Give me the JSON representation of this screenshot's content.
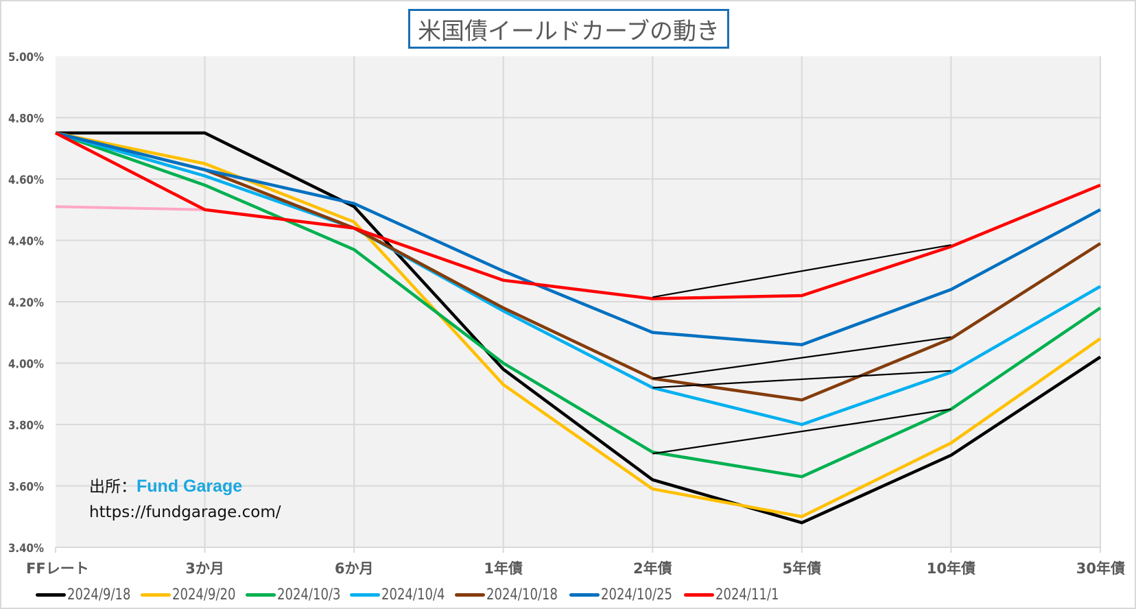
{
  "chart_data": {
    "type": "line",
    "title": "米国債イールドカーブの動き",
    "xlabel": "",
    "ylabel": "",
    "categories": [
      "FFレート",
      "3か月",
      "6か月",
      "1年債",
      "2年債",
      "5年債",
      "10年債",
      "30年債"
    ],
    "ylim": [
      3.4,
      5.0
    ],
    "yticks": [
      3.4,
      3.6,
      3.8,
      4.0,
      4.2,
      4.4,
      4.6,
      4.8,
      5.0
    ],
    "ytick_labels": [
      "3.40%",
      "3.60%",
      "3.80%",
      "4.00%",
      "4.20%",
      "4.40%",
      "4.60%",
      "4.80%",
      "5.00%"
    ],
    "grid": true,
    "legend_position": "bottom",
    "series": [
      {
        "name": "2024/9/18",
        "color": "#000000",
        "values": [
          4.75,
          4.75,
          4.51,
          3.98,
          3.62,
          3.48,
          3.7,
          4.02
        ]
      },
      {
        "name": "2024/9/20",
        "color": "#ffc000",
        "values": [
          4.75,
          4.65,
          4.46,
          3.93,
          3.59,
          3.5,
          3.74,
          4.08
        ]
      },
      {
        "name": "2024/10/3",
        "color": "#00b050",
        "values": [
          4.75,
          4.58,
          4.37,
          4.0,
          3.71,
          3.63,
          3.85,
          4.18
        ]
      },
      {
        "name": "2024/10/4",
        "color": "#00b0f0",
        "values": [
          4.75,
          4.61,
          4.44,
          4.17,
          3.92,
          3.8,
          3.97,
          4.25
        ]
      },
      {
        "name": "2024/10/18",
        "color": "#843c0c",
        "values": [
          4.75,
          4.63,
          4.44,
          4.18,
          3.95,
          3.88,
          4.08,
          4.39
        ]
      },
      {
        "name": "2024/10/25",
        "color": "#0070c0",
        "values": [
          4.75,
          4.63,
          4.52,
          4.3,
          4.1,
          4.06,
          4.24,
          4.5
        ]
      },
      {
        "name": "2024/11/1",
        "color": "#ff0000",
        "values": [
          4.75,
          4.5,
          4.44,
          4.27,
          4.21,
          4.22,
          4.38,
          4.58
        ]
      }
    ],
    "reference_line": {
      "color": "#ffa7c4",
      "from_category": "FFレート",
      "to_category": "3か月",
      "values": [
        4.51,
        4.5
      ]
    },
    "annotation_lines": [
      {
        "color": "#000000",
        "from_category": "2年債",
        "to_category": "10年債",
        "values": [
          4.215,
          4.385
        ]
      },
      {
        "color": "#000000",
        "from_category": "2年債",
        "to_category": "10年債",
        "values": [
          3.95,
          4.085
        ]
      },
      {
        "color": "#000000",
        "from_category": "2年債",
        "to_category": "10年債",
        "values": [
          3.92,
          3.975
        ]
      },
      {
        "color": "#000000",
        "from_category": "2年債",
        "to_category": "10年債",
        "values": [
          3.705,
          3.85
        ]
      }
    ]
  },
  "source": {
    "label": "出所：",
    "brand": "Fund Garage",
    "url": "https://fundgarage.com/"
  },
  "colors": {
    "plot_background": "#f2f2f2",
    "gridline": "#d9d9d9",
    "title_border": "#1a6fb5",
    "axis_text": "#595959",
    "brand": "#1aa7e0"
  }
}
